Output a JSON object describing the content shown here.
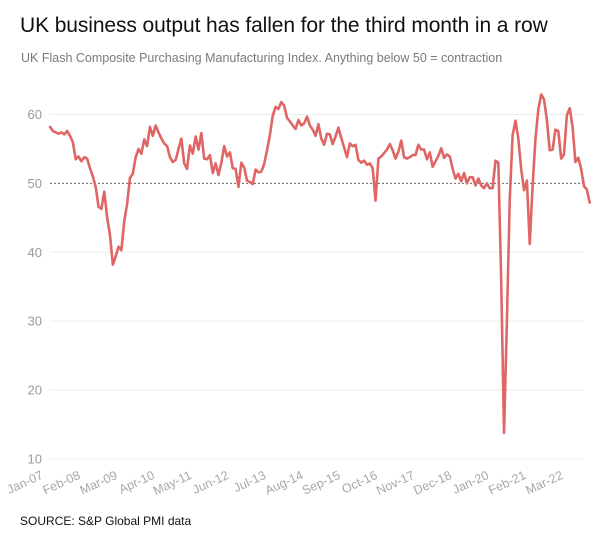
{
  "title": "UK business output has fallen for the third month in a row",
  "subtitle": "UK Flash Composite Purchasing Manufacturing Index. Anything below 50 = contraction",
  "source": "SOURCE: S&P Global PMI data",
  "colors": {
    "line": "#e06666",
    "grid": "#ececec",
    "reference": "#666666",
    "tick_text": "#9a9a9a"
  },
  "chart_data": {
    "type": "line",
    "title": "UK business output has fallen for the third month in a row",
    "subtitle": "UK Flash Composite Purchasing Manufacturing Index. Anything below 50 = contraction",
    "xlabel": "",
    "ylabel": "",
    "ylim": [
      10,
      65
    ],
    "xlim": [
      "2007-01",
      "2022-08"
    ],
    "y_ticks": [
      10,
      20,
      30,
      40,
      50,
      60
    ],
    "x_tick_labels": [
      "Jan-07",
      "Feb-08",
      "Mar-09",
      "Apr-10",
      "May-11",
      "Jun-12",
      "Jul-13",
      "Aug-14",
      "Sep-15",
      "Oct-16",
      "Nov-17",
      "Dec-18",
      "Jan-20",
      "Feb-21",
      "Mar-22"
    ],
    "reference_line": 50,
    "grid": "horizontal",
    "series": [
      {
        "points": [
          [
            "2007-01",
            58.2
          ],
          [
            "2007-02",
            57.6
          ],
          [
            "2007-03",
            57.4
          ],
          [
            "2007-04",
            57.2
          ],
          [
            "2007-05",
            57.4
          ],
          [
            "2007-06",
            57.1
          ],
          [
            "2007-07",
            57.6
          ],
          [
            "2007-08",
            56.9
          ],
          [
            "2007-09",
            56.0
          ],
          [
            "2007-10",
            53.5
          ],
          [
            "2007-11",
            53.9
          ],
          [
            "2007-12",
            53.2
          ],
          [
            "2008-01",
            53.8
          ],
          [
            "2008-02",
            53.6
          ],
          [
            "2008-03",
            52.2
          ],
          [
            "2008-04",
            51.0
          ],
          [
            "2008-05",
            49.5
          ],
          [
            "2008-06",
            46.6
          ],
          [
            "2008-07",
            46.3
          ],
          [
            "2008-08",
            48.8
          ],
          [
            "2008-09",
            45.1
          ],
          [
            "2008-10",
            42.5
          ],
          [
            "2008-11",
            38.2
          ],
          [
            "2008-12",
            39.4
          ],
          [
            "2009-01",
            40.8
          ],
          [
            "2009-02",
            40.3
          ],
          [
            "2009-03",
            44.5
          ],
          [
            "2009-04",
            47.0
          ],
          [
            "2009-05",
            50.8
          ],
          [
            "2009-06",
            51.4
          ],
          [
            "2009-07",
            53.8
          ],
          [
            "2009-08",
            55.0
          ],
          [
            "2009-09",
            54.3
          ],
          [
            "2009-10",
            56.4
          ],
          [
            "2009-11",
            55.4
          ],
          [
            "2009-12",
            58.2
          ],
          [
            "2010-01",
            56.9
          ],
          [
            "2010-02",
            58.4
          ],
          [
            "2010-03",
            57.4
          ],
          [
            "2010-04",
            56.5
          ],
          [
            "2010-05",
            55.8
          ],
          [
            "2010-06",
            55.4
          ],
          [
            "2010-07",
            53.8
          ],
          [
            "2010-08",
            53.1
          ],
          [
            "2010-09",
            53.4
          ],
          [
            "2010-10",
            55.0
          ],
          [
            "2010-11",
            56.5
          ],
          [
            "2010-12",
            52.9
          ],
          [
            "2011-01",
            52.1
          ],
          [
            "2011-02",
            55.5
          ],
          [
            "2011-03",
            54.3
          ],
          [
            "2011-04",
            56.8
          ],
          [
            "2011-05",
            54.9
          ],
          [
            "2011-06",
            57.3
          ],
          [
            "2011-07",
            53.6
          ],
          [
            "2011-08",
            53.5
          ],
          [
            "2011-09",
            54.1
          ],
          [
            "2011-10",
            51.5
          ],
          [
            "2011-11",
            52.9
          ],
          [
            "2011-12",
            51.2
          ],
          [
            "2012-01",
            53.0
          ],
          [
            "2012-02",
            55.4
          ],
          [
            "2012-03",
            53.9
          ],
          [
            "2012-04",
            54.5
          ],
          [
            "2012-05",
            52.2
          ],
          [
            "2012-06",
            52.1
          ],
          [
            "2012-07",
            49.5
          ],
          [
            "2012-08",
            53.0
          ],
          [
            "2012-09",
            52.3
          ],
          [
            "2012-10",
            50.4
          ],
          [
            "2012-11",
            50.2
          ],
          [
            "2012-12",
            49.9
          ],
          [
            "2013-01",
            52.0
          ],
          [
            "2013-02",
            51.6
          ],
          [
            "2013-03",
            51.7
          ],
          [
            "2013-04",
            52.8
          ],
          [
            "2013-05",
            54.8
          ],
          [
            "2013-06",
            57.0
          ],
          [
            "2013-07",
            59.8
          ],
          [
            "2013-08",
            61.1
          ],
          [
            "2013-09",
            60.8
          ],
          [
            "2013-10",
            61.8
          ],
          [
            "2013-11",
            61.3
          ],
          [
            "2013-12",
            59.5
          ],
          [
            "2014-01",
            59.0
          ],
          [
            "2014-02",
            58.4
          ],
          [
            "2014-03",
            57.9
          ],
          [
            "2014-04",
            59.2
          ],
          [
            "2014-05",
            58.4
          ],
          [
            "2014-06",
            58.7
          ],
          [
            "2014-07",
            59.7
          ],
          [
            "2014-08",
            58.4
          ],
          [
            "2014-09",
            57.8
          ],
          [
            "2014-10",
            56.9
          ],
          [
            "2014-11",
            58.6
          ],
          [
            "2014-12",
            56.5
          ],
          [
            "2015-01",
            55.6
          ],
          [
            "2015-02",
            57.2
          ],
          [
            "2015-03",
            57.1
          ],
          [
            "2015-04",
            55.7
          ],
          [
            "2015-05",
            56.8
          ],
          [
            "2015-06",
            58.1
          ],
          [
            "2015-07",
            56.6
          ],
          [
            "2015-08",
            55.2
          ],
          [
            "2015-09",
            53.8
          ],
          [
            "2015-10",
            55.8
          ],
          [
            "2015-11",
            55.4
          ],
          [
            "2015-12",
            55.6
          ],
          [
            "2016-01",
            53.4
          ],
          [
            "2016-02",
            53.0
          ],
          [
            "2016-03",
            53.3
          ],
          [
            "2016-04",
            52.7
          ],
          [
            "2016-05",
            52.9
          ],
          [
            "2016-06",
            52.2
          ],
          [
            "2016-07",
            47.5
          ],
          [
            "2016-08",
            53.6
          ],
          [
            "2016-09",
            53.9
          ],
          [
            "2016-10",
            54.4
          ],
          [
            "2016-11",
            54.9
          ],
          [
            "2016-12",
            55.7
          ],
          [
            "2017-01",
            54.8
          ],
          [
            "2017-02",
            53.6
          ],
          [
            "2017-03",
            54.6
          ],
          [
            "2017-04",
            56.2
          ],
          [
            "2017-05",
            53.8
          ],
          [
            "2017-06",
            53.6
          ],
          [
            "2017-07",
            53.8
          ],
          [
            "2017-08",
            54.1
          ],
          [
            "2017-09",
            54.1
          ],
          [
            "2017-10",
            55.6
          ],
          [
            "2017-11",
            54.9
          ],
          [
            "2017-12",
            54.9
          ],
          [
            "2018-01",
            53.5
          ],
          [
            "2018-02",
            54.5
          ],
          [
            "2018-03",
            52.4
          ],
          [
            "2018-04",
            53.2
          ],
          [
            "2018-05",
            54.0
          ],
          [
            "2018-06",
            55.1
          ],
          [
            "2018-07",
            53.7
          ],
          [
            "2018-08",
            54.2
          ],
          [
            "2018-09",
            53.9
          ],
          [
            "2018-10",
            52.1
          ],
          [
            "2018-11",
            50.7
          ],
          [
            "2018-12",
            51.4
          ],
          [
            "2019-01",
            50.3
          ],
          [
            "2019-02",
            51.5
          ],
          [
            "2019-03",
            50.0
          ],
          [
            "2019-04",
            50.9
          ],
          [
            "2019-05",
            50.9
          ],
          [
            "2019-06",
            49.7
          ],
          [
            "2019-07",
            50.7
          ],
          [
            "2019-08",
            49.7
          ],
          [
            "2019-09",
            49.3
          ],
          [
            "2019-10",
            50.0
          ],
          [
            "2019-11",
            49.3
          ],
          [
            "2019-12",
            49.3
          ],
          [
            "2020-01",
            53.3
          ],
          [
            "2020-02",
            53.0
          ],
          [
            "2020-03",
            36.0
          ],
          [
            "2020-04",
            13.8
          ],
          [
            "2020-05",
            30.0
          ],
          [
            "2020-06",
            47.7
          ],
          [
            "2020-07",
            57.0
          ],
          [
            "2020-08",
            59.1
          ],
          [
            "2020-09",
            56.5
          ],
          [
            "2020-10",
            52.1
          ],
          [
            "2020-11",
            49.0
          ],
          [
            "2020-12",
            50.4
          ],
          [
            "2021-01",
            41.2
          ],
          [
            "2021-02",
            49.6
          ],
          [
            "2021-03",
            56.4
          ],
          [
            "2021-04",
            60.7
          ],
          [
            "2021-05",
            62.9
          ],
          [
            "2021-06",
            62.2
          ],
          [
            "2021-07",
            59.2
          ],
          [
            "2021-08",
            54.8
          ],
          [
            "2021-09",
            54.9
          ],
          [
            "2021-10",
            57.8
          ],
          [
            "2021-11",
            57.6
          ],
          [
            "2021-12",
            53.6
          ],
          [
            "2022-01",
            54.2
          ],
          [
            "2022-02",
            59.9
          ],
          [
            "2022-03",
            60.9
          ],
          [
            "2022-04",
            58.2
          ],
          [
            "2022-05",
            53.1
          ],
          [
            "2022-06",
            53.7
          ],
          [
            "2022-07",
            52.1
          ],
          [
            "2022-08",
            49.6
          ],
          [
            "2022-09",
            49.1
          ],
          [
            "2022-10",
            47.2
          ]
        ]
      }
    ]
  }
}
